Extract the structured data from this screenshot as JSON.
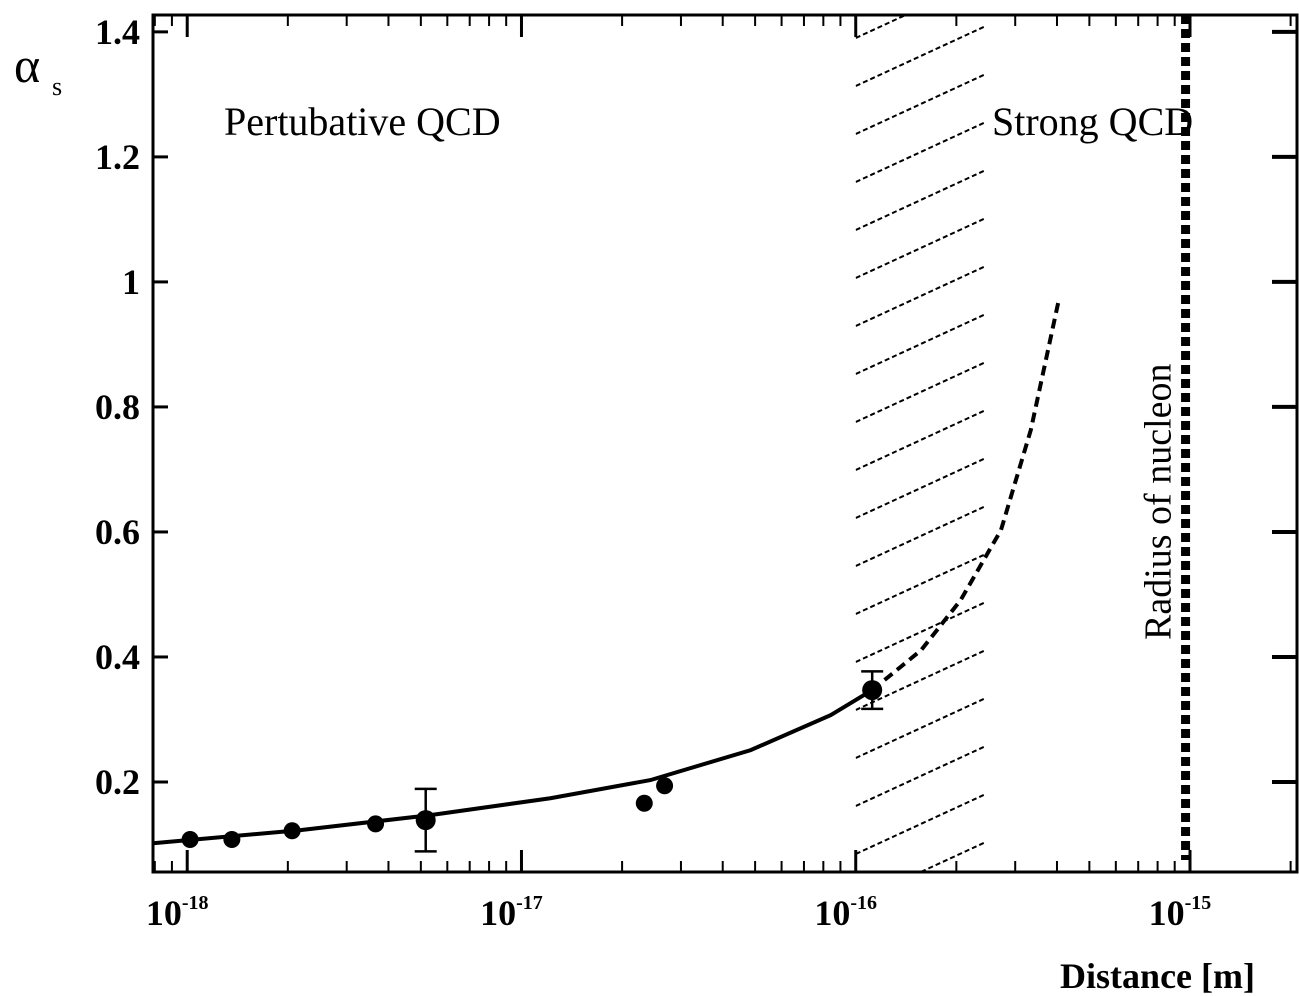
{
  "chart_data": {
    "type": "line",
    "xscale": "log",
    "ylabel": "α",
    "ylabel_subscript": "s",
    "xlabel": "Distance [m]",
    "annotations": [
      "Pertubative QCD",
      "Strong QCD",
      "Radius of nucleon"
    ],
    "xlim": [
      7.9e-19,
      2.09e-15
    ],
    "ylim": [
      0.056,
      1.427
    ],
    "xticks": [
      {
        "value": 1e-18,
        "label": "10",
        "exponent": "-18"
      },
      {
        "value": 1e-17,
        "label": "10",
        "exponent": "-17"
      },
      {
        "value": 1e-16,
        "label": "10",
        "exponent": "-16"
      },
      {
        "value": 1e-15,
        "label": "10",
        "exponent": "-15"
      }
    ],
    "yticks": [
      0.2,
      0.4,
      0.6,
      0.8,
      1,
      1.2,
      1.4
    ],
    "color": "#000000",
    "shaded_region": [
      1e-16,
      2.45e-16
    ],
    "reference_line": 9.7e-16,
    "series": [
      {
        "kind": "line",
        "dash": "solid",
        "x": [
          7.9e-19,
          2.18e-18,
          5.34e-18,
          1.22e-17,
          2.43e-17,
          4.85e-17,
          8.42e-17,
          1.12e-16
        ],
        "values": [
          0.102,
          0.123,
          0.147,
          0.174,
          0.203,
          0.251,
          0.307,
          0.347
        ]
      },
      {
        "kind": "line",
        "dash": "dashed",
        "x": [
          1.12e-16,
          1.57e-16,
          2.06e-16,
          2.72e-16,
          3.34e-16,
          4.05e-16
        ],
        "values": [
          0.347,
          0.411,
          0.491,
          0.603,
          0.763,
          0.971
        ]
      },
      {
        "kind": "scatter",
        "x": [
          1.02e-18,
          1.36e-18,
          2.06e-18,
          3.66e-18,
          5.17e-18,
          2.33e-17,
          2.68e-17,
          1.12e-16
        ],
        "values": [
          0.108,
          0.108,
          0.122,
          0.133,
          0.139,
          0.166,
          0.194,
          0.347
        ],
        "errors": [
          null,
          null,
          null,
          null,
          0.05,
          null,
          null,
          0.03
        ]
      }
    ]
  }
}
